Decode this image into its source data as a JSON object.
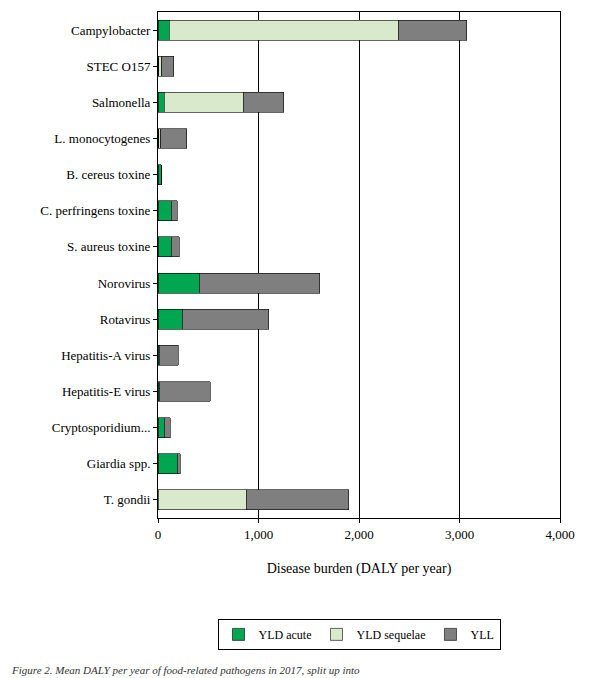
{
  "chart_data": {
    "type": "bar",
    "orientation": "horizontal",
    "stacked": true,
    "grid": true,
    "legend": "bottom",
    "xlabel": "Disease burden (DALY per year)",
    "caption": "Figure 2. Mean DALY per year of food-related pathogens in 2017, split up into",
    "categories": [
      "Campylobacter",
      "STEC O157",
      "Salmonella",
      "L. monocytogenes",
      "B. cereus toxine",
      "C. perfringens toxine",
      "S. aureus toxine",
      "Norovirus",
      "Rotavirus",
      "Hepatitis-A virus",
      "Hepatitis-E virus",
      "Cryptosporidium...",
      "Giardia spp.",
      "T. gondii"
    ],
    "series": [
      {
        "name": "YLD acute",
        "color": "#00a650",
        "values": [
          110,
          5,
          60,
          5,
          30,
          130,
          130,
          410,
          240,
          10,
          10,
          60,
          190,
          0
        ]
      },
      {
        "name": "YLD sequelae",
        "color": "#d8eacb",
        "values": [
          2280,
          30,
          790,
          20,
          0,
          0,
          0,
          0,
          0,
          0,
          0,
          0,
          0,
          880
        ]
      },
      {
        "name": "YLL",
        "color": "#7f7f7f",
        "values": [
          680,
          120,
          400,
          260,
          0,
          60,
          80,
          1200,
          860,
          190,
          510,
          60,
          30,
          1020
        ]
      }
    ],
    "xlim": [
      0,
      4000
    ],
    "xticks": [
      0,
      {
        "value": 1000,
        "label": "1,000"
      },
      {
        "value": 2000,
        "label": "2,000"
      },
      {
        "value": 3000,
        "label": "3,000"
      },
      {
        "value": 4000,
        "label": "4,000"
      }
    ]
  }
}
